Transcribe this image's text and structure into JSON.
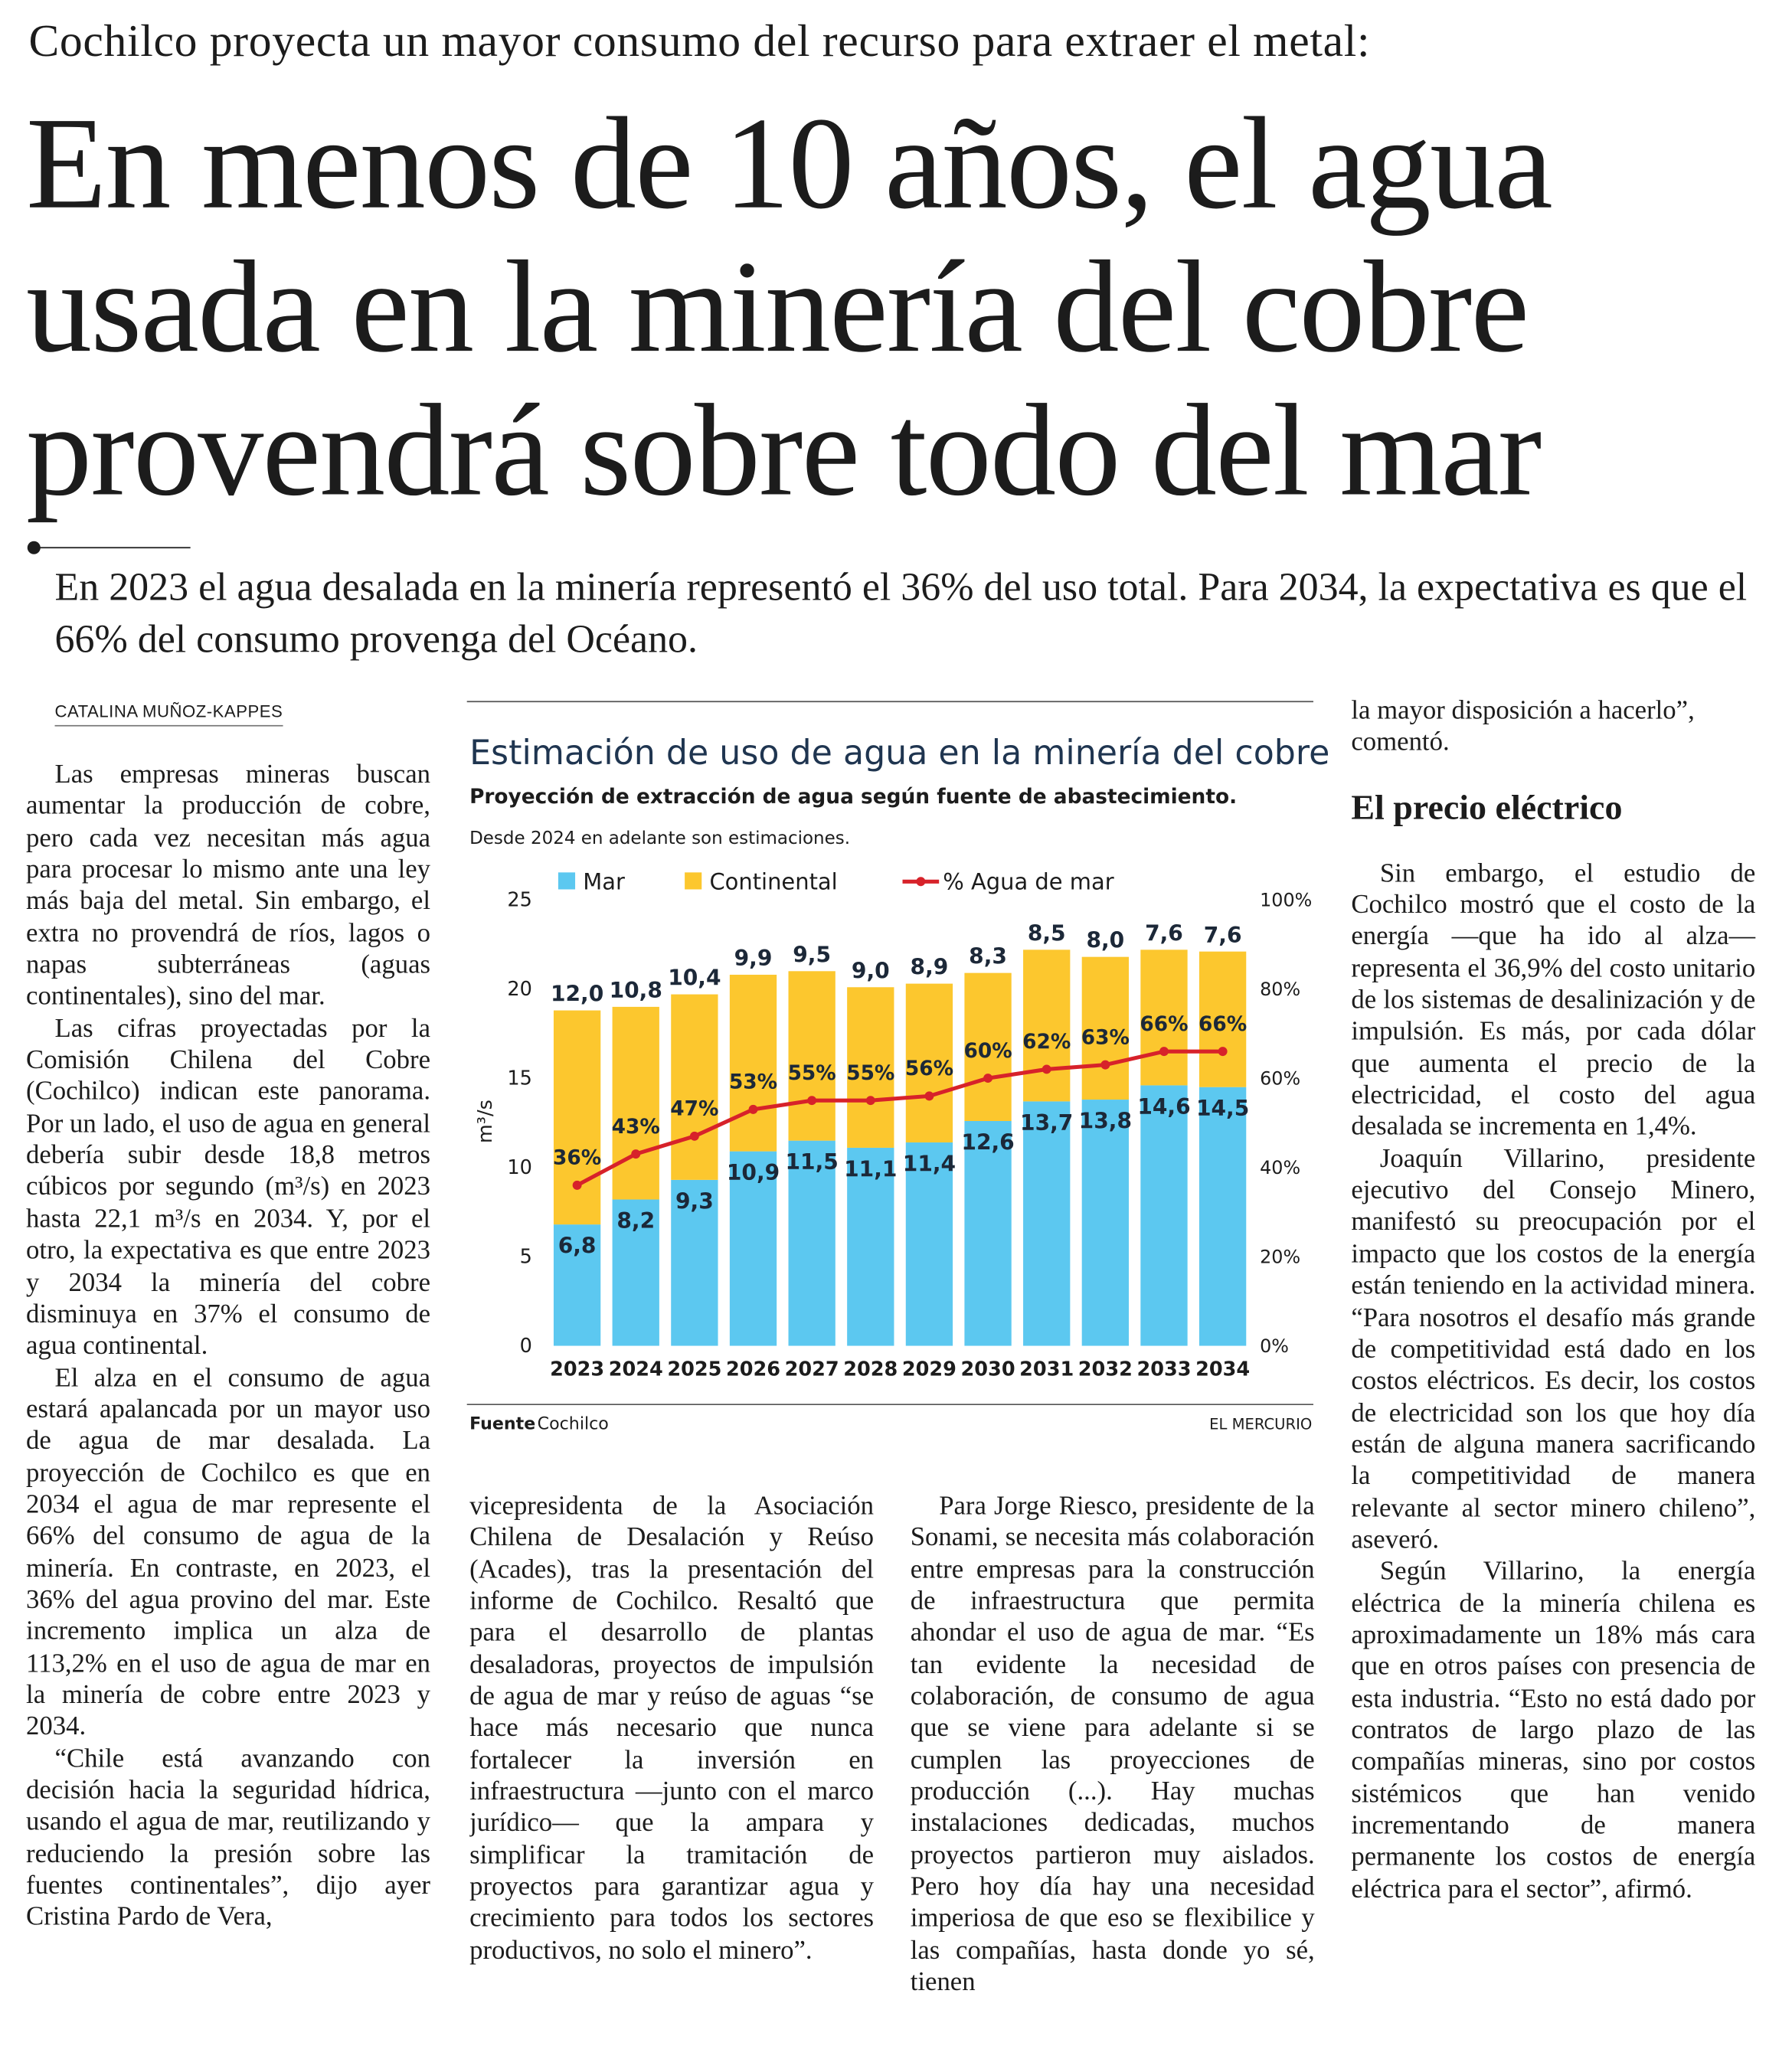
{
  "header": {
    "kicker": "Cochilco proyecta un mayor consumo del recurso para extraer el metal:",
    "headline": [
      "En menos de 10 años, el agua",
      "usada en la minería del cobre",
      "provendrá sobre todo del mar"
    ],
    "deck": "En 2023 el agua desalada en la minería representó el 36% del uso total. Para 2034, la expectativa es que el 66% del consumo provenga del Océano."
  },
  "byline": "CATALINA MUÑOZ-KAPPES",
  "chart_data": {
    "type": "stacked_bar",
    "title": "Estimación de uso de agua en la minería del cobre",
    "subtitle": "Proyección de extracción de agua según fuente de abastecimiento.",
    "note": "Desde 2024 en adelante son estimaciones.",
    "ylabel": "m³/s",
    "categories": [
      "2023",
      "2024",
      "2025",
      "2026",
      "2027",
      "2028",
      "2029",
      "2030",
      "2031",
      "2032",
      "2033",
      "2034"
    ],
    "series": [
      {
        "name": "Mar",
        "color": "#5cc8f0",
        "values": [
          6.8,
          8.2,
          9.3,
          10.9,
          11.5,
          11.1,
          11.4,
          12.6,
          13.7,
          13.8,
          14.6,
          14.5
        ],
        "value_labels": [
          "6,8",
          "8,2",
          "9,3",
          "10,9",
          "11,5",
          "11,1",
          "11,4",
          "12,6",
          "13,7",
          "13,8",
          "14,6",
          "14,5"
        ]
      },
      {
        "name": "Continental",
        "color": "#fcc72e",
        "values": [
          12.0,
          10.8,
          10.4,
          9.9,
          9.5,
          9.0,
          8.9,
          8.3,
          8.5,
          8.0,
          7.6,
          7.6
        ],
        "value_labels": [
          "12,0",
          "10,8",
          "10,4",
          "9,9",
          "9,5",
          "9,0",
          "8,9",
          "8,3",
          "8,5",
          "8,0",
          "7,6",
          "7,6"
        ]
      },
      {
        "name": "% Agua de mar",
        "type": "line",
        "axis": "y2",
        "color": "#d7222a",
        "values": [
          36,
          43,
          47,
          53,
          55,
          55,
          56,
          60,
          62,
          63,
          66,
          66
        ],
        "value_labels": [
          "36%",
          "43%",
          "47%",
          "53%",
          "55%",
          "55%",
          "56%",
          "60%",
          "62%",
          "63%",
          "66%",
          "66%"
        ]
      }
    ],
    "ylim": [
      0,
      25
    ],
    "yticks": [
      0,
      5,
      10,
      15,
      20,
      25
    ],
    "y2lim": [
      0,
      100
    ],
    "y2ticks": [
      {
        "value": 0,
        "label": "0%"
      },
      {
        "value": 20,
        "label": "20%"
      },
      {
        "value": 40,
        "label": "40%"
      },
      {
        "value": 60,
        "label": "60%"
      },
      {
        "value": 80,
        "label": "80%"
      },
      {
        "value": 100,
        "label": "100%"
      }
    ],
    "grid": false,
    "source_label": "Fuente",
    "source": "Cochilco",
    "credit": "EL MERCURIO"
  },
  "body": {
    "columns": [
      [
        "Las empresas mineras buscan aumentar la producción de cobre, pero cada vez necesitan más agua para procesar lo mismo ante una ley más baja del metal. Sin embargo, el extra no provendrá de ríos, lagos o napas subterráneas (aguas continentales), sino del mar.",
        "Las cifras proyectadas por la Comisión Chilena del Cobre (Cochilco) indican este panorama. Por un lado, el uso de agua en general debería subir desde 18,8 metros cúbicos por segundo (m³/s) en 2023 hasta 22,1 m³/s en 2034. Y, por el otro, la expectativa es que entre 2023 y 2034 la minería del cobre disminuya en 37% el consumo de agua continental.",
        "El alza en el consumo de agua estará apalancada por un mayor uso de agua de mar desalada. La proyección de Cochilco es que en 2034 el agua de mar represente el 66% del consumo de agua de la minería. En contraste, en 2023, el 36% del agua provino del mar. Este incremento implica un alza de 113,2% en el uso de agua de mar en la minería de cobre entre 2023 y 2034.",
        "“Chile está avanzando con decisión hacia la seguridad hídrica, usando el agua de mar, reutilizando y reduciendo la presión sobre las fuentes continentales”, dijo ayer Cristina Pardo de Vera,"
      ],
      [
        "vicepresidenta de la Asociación Chilena de Desalación y Reúso (Acades), tras la presentación del informe de Cochilco. Resaltó que para el desarrollo de plantas desaladoras, proyectos de impulsión de agua de mar y reúso de aguas “se hace más necesario que nunca fortalecer la inversión en infraestructura —junto con el marco jurídico— que la ampara y simplificar la tramitación de proyectos para garantizar agua y crecimiento para todos los sectores productivos, no solo el minero”."
      ],
      [
        "Para Jorge Riesco, presidente de la Sonami, se necesita más colaboración entre empresas para la construcción de infraestructura que permita ahondar el uso de agua de mar. “Es tan evidente la necesidad de colaboración, de consumo de agua que se viene para adelante si se cumplen las proyecciones de producción (...). Hay muchas instalaciones dedicadas, muchos proyectos partieron muy aislados. Pero hoy día hay una necesidad imperiosa de que eso se flexibilice y las compañías, hasta donde yo sé, tienen"
      ],
      [
        "la mayor disposición a hacerlo”, comentó.",
        "Sin embargo, el estudio de Cochilco mostró que el costo de la energía —que ha ido al alza— representa el 36,9% del costo unitario de los sistemas de desalinización y de impulsión. Es más, por cada dólar que aumenta el precio de la electricidad, el costo del agua desalada se incrementa en 1,4%.",
        "Joaquín Villarino, presidente ejecutivo del Consejo Minero, manifestó su preocupación por el impacto que los costos de la energía están teniendo en la actividad minera. “Para nosotros el desafío más grande de competitividad está dado en los costos eléctricos. Es decir, los costos de electricidad son los que hoy día están de alguna manera sacrificando la competitividad de manera relevante al sector minero chileno”, aseveró.",
        "Según Villarino, la energía eléctrica de la minería chilena es aproximadamente un 18% más cara que en otros países con presencia de esta industria. “Esto no está dado por contratos de largo plazo de las compañías mineras, sino por costos sistémicos que han venido incrementando de manera permanente los costos de energía eléctrica para el sector”, afirmó."
      ]
    ],
    "subheading": "El precio eléctrico"
  }
}
